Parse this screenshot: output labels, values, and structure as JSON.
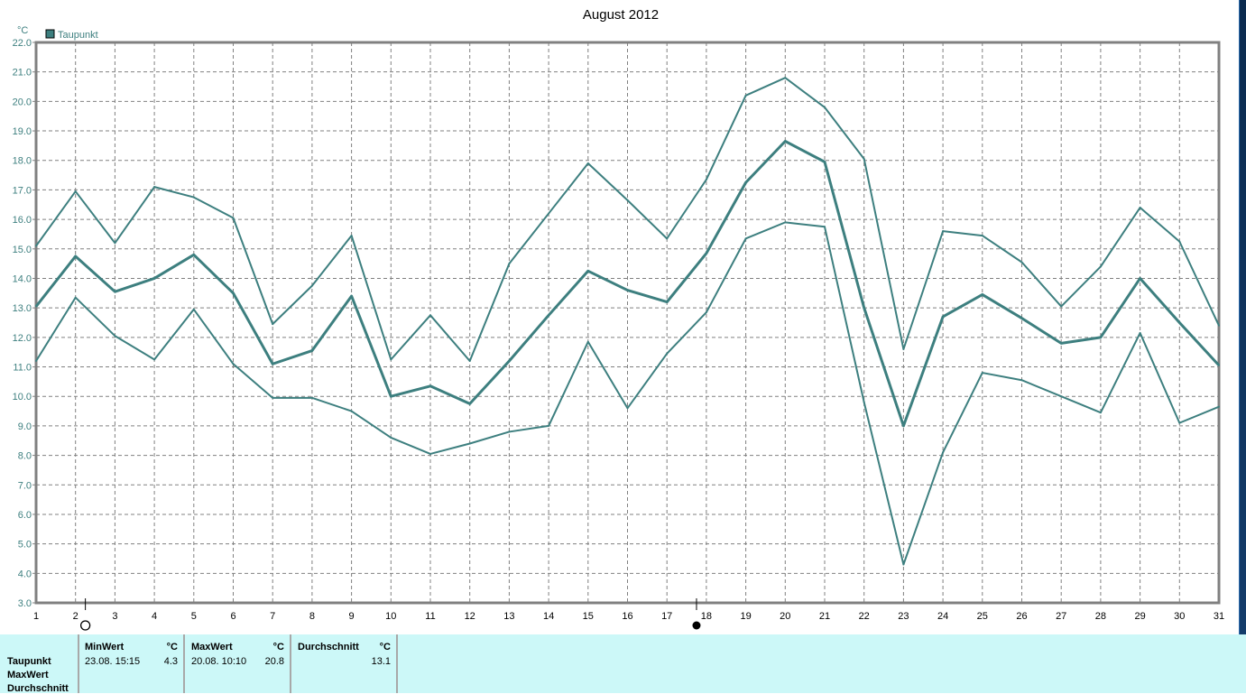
{
  "chart_data": {
    "type": "line",
    "title": "August 2012",
    "ylabel": "°C",
    "legend": {
      "label": "Taupunkt",
      "placement": "top-left",
      "color": "#3d7f7f"
    },
    "line_color": "#3d7f7f",
    "grid": true,
    "xlim": [
      1,
      31
    ],
    "ylim": [
      3.0,
      22.0
    ],
    "x": [
      1,
      2,
      3,
      4,
      5,
      6,
      7,
      8,
      9,
      10,
      11,
      12,
      13,
      14,
      15,
      16,
      17,
      18,
      19,
      20,
      21,
      22,
      23,
      24,
      25,
      26,
      27,
      28,
      29,
      30,
      31
    ],
    "y_ticks": [
      "3.0",
      "4.0",
      "5.0",
      "6.0",
      "7.0",
      "8.0",
      "9.0",
      "10.0",
      "11.0",
      "12.0",
      "13.0",
      "14.0",
      "15.0",
      "16.0",
      "17.0",
      "18.0",
      "19.0",
      "20.0",
      "21.0",
      "22.0"
    ],
    "series": [
      {
        "key": "max",
        "values": [
          15.1,
          16.95,
          15.2,
          17.1,
          16.75,
          16.05,
          12.45,
          13.75,
          15.45,
          11.25,
          12.75,
          11.2,
          14.5,
          16.2,
          17.9,
          16.65,
          15.35,
          17.35,
          20.2,
          20.8,
          19.8,
          18.05,
          11.6,
          15.6,
          15.45,
          14.55,
          13.05,
          14.4,
          16.4,
          15.25,
          12.4
        ]
      },
      {
        "key": "avg",
        "values": [
          13.05,
          14.75,
          13.55,
          14.0,
          14.8,
          13.5,
          11.1,
          11.55,
          13.4,
          10.0,
          10.35,
          9.75,
          11.2,
          12.75,
          14.25,
          13.6,
          13.2,
          14.85,
          17.25,
          18.65,
          17.95,
          13.0,
          9.0,
          12.7,
          13.45,
          12.65,
          11.8,
          12.0,
          14.0,
          12.5,
          11.05
        ]
      },
      {
        "key": "min",
        "values": [
          11.2,
          13.35,
          12.05,
          11.25,
          12.95,
          11.1,
          9.95,
          9.95,
          9.5,
          8.6,
          8.05,
          8.4,
          8.8,
          9.0,
          11.85,
          9.6,
          11.45,
          12.85,
          15.35,
          15.9,
          15.75,
          9.8,
          4.3,
          8.1,
          10.8,
          10.55,
          10.0,
          9.45,
          12.15,
          9.1,
          9.65
        ]
      }
    ],
    "markers": {
      "min_marker_day": 2.25,
      "max_marker_day": 17.75
    }
  },
  "table": {
    "row_labels": [
      "Taupunkt",
      "MaxWert",
      "Durchschnitt"
    ],
    "min": {
      "header": "MinWert",
      "unit": "°C",
      "date": "23.08.  15:15",
      "value": "4.3"
    },
    "max": {
      "header": "MaxWert",
      "unit": "°C",
      "date": "20.08.  10:10",
      "value": "20.8"
    },
    "avg": {
      "header": "Durchschnitt",
      "unit": "°C",
      "value": "13.1"
    }
  }
}
